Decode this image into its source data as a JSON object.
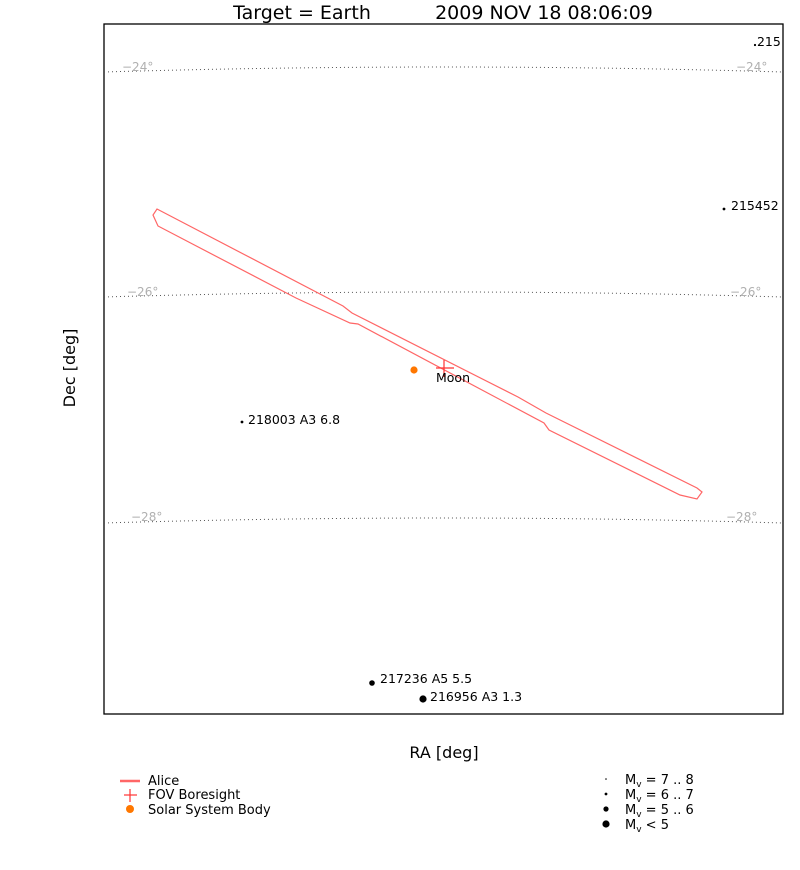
{
  "header": {
    "target": "Target = Earth",
    "datetime": "2009 NOV 18 08:06:09"
  },
  "axes": {
    "xlabel": "RA [deg]",
    "ylabel": "Dec [deg]"
  },
  "dec_grid": [
    {
      "label": "−24°"
    },
    {
      "label": "−26°"
    },
    {
      "label": "−28°"
    }
  ],
  "stars": [
    {
      "label": ".215",
      "mag_class": "6-7"
    },
    {
      "label": "215452",
      "mag_class": "6-7"
    },
    {
      "label": "218003 A3 6.8",
      "mag_class": "6-7"
    },
    {
      "label": "217236 A5 5.5",
      "mag_class": "5-6"
    },
    {
      "label": "216956 A3 1.3",
      "mag_class": "<5"
    }
  ],
  "bodies": [
    {
      "label": "Moon",
      "color": "#ff7700"
    }
  ],
  "fov": {
    "name": "Alice",
    "color": "#ff6666",
    "boresight_color": "#ff3333"
  },
  "legend_left": [
    {
      "label": "Alice",
      "symbol": "line",
      "color": "#ff6666"
    },
    {
      "label": "FOV Boresight",
      "symbol": "cross",
      "color": "#ff3333"
    },
    {
      "label": "Solar System Body",
      "symbol": "dot",
      "color": "#ff7700"
    }
  ],
  "legend_right": [
    {
      "prefix": "M",
      "sub": "v",
      "suffix": " = 7 .. 8"
    },
    {
      "prefix": "M",
      "sub": "v",
      "suffix": " = 6 .. 7"
    },
    {
      "prefix": "M",
      "sub": "v",
      "suffix": " = 5 .. 6"
    },
    {
      "prefix": "M",
      "sub": "v",
      "suffix": " < 5"
    }
  ]
}
